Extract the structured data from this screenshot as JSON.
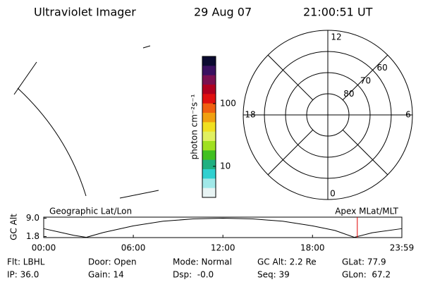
{
  "header": {
    "title": "Ultraviolet Imager",
    "date": "29 Aug 07",
    "time": "21:00:51 UT"
  },
  "colorbar": {
    "label": "photon cm⁻²s⁻¹",
    "log": true,
    "range": [
      3.2,
      565
    ],
    "ticks": [
      10,
      100
    ],
    "colors": [
      "#0a0a30",
      "#3a1060",
      "#7a1050",
      "#b00020",
      "#e01010",
      "#f06010",
      "#f0a010",
      "#f0e020",
      "#e0f060",
      "#a0e020",
      "#40c020",
      "#20b080",
      "#30d0d0",
      "#a0e8e8",
      "#e8f4f4"
    ]
  },
  "polar": {
    "lat_range": [
      50,
      90
    ],
    "rings": [
      60,
      70,
      80
    ],
    "mlt_labels": {
      "top": "12",
      "right": "6",
      "bottom": "0",
      "left": "18"
    }
  },
  "timeline": {
    "left_label": "Geographic Lat/Lon",
    "right_label": "Apex MLat/MLT",
    "ylabel": "GC Alt",
    "ylim": [
      1.4,
      9.4
    ],
    "yticks": [
      {
        "value": 9.0,
        "label": "9.0"
      },
      {
        "value": 1.8,
        "label": "1.8"
      }
    ],
    "xlim": [
      0,
      23.983
    ],
    "xticks": [
      {
        "value": 0,
        "label": "00:00"
      },
      {
        "value": 6,
        "label": "06:00"
      },
      {
        "value": 12,
        "label": "12:00"
      },
      {
        "value": 18,
        "label": "18:00"
      },
      {
        "value": 23.983,
        "label": "23:59"
      }
    ],
    "x": [
      0,
      1,
      2,
      2.85,
      4,
      6,
      8,
      10,
      12,
      14,
      16,
      18,
      19.5,
      20.8,
      22,
      23.983
    ],
    "values": [
      4.9,
      3.6,
      2.3,
      1.5,
      3.4,
      6.0,
      7.8,
      8.7,
      9.0,
      8.7,
      7.8,
      6.0,
      4.2,
      1.5,
      3.3,
      4.9
    ],
    "marker": 21.0,
    "marker_color": "#e00000"
  },
  "footer": [
    [
      "Flt: LBHL",
      "Door: Open",
      "Mode: Normal",
      "GC Alt: 2.2 Re",
      "GLat: 77.9"
    ],
    [
      "IP: 36.0",
      "Gain: 14",
      "Dsp:  -0.0",
      "Seq: 39",
      "GLon:  67.2"
    ]
  ]
}
